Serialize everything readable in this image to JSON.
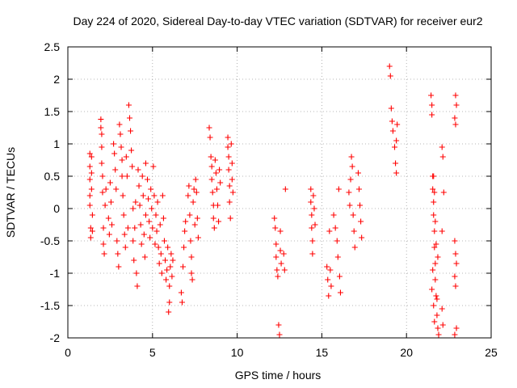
{
  "chart_data": {
    "type": "scatter",
    "title": "Day 224 of 2020, Sidereal Day-to-day VTEC variation (SDTVAR) for receiver eur2",
    "xlabel": "GPS time / hours",
    "ylabel": "SDTVAR / TECUs",
    "xlim": [
      0,
      25
    ],
    "ylim": [
      -2,
      2.5
    ],
    "xticks": [
      0,
      5,
      10,
      15,
      20,
      25
    ],
    "yticks": [
      -2,
      -1.5,
      -1,
      -0.5,
      0,
      0.5,
      1,
      1.5,
      2,
      2.5
    ],
    "xtick_labels": [
      "0",
      "5",
      "10",
      "15",
      "20",
      "25"
    ],
    "ytick_labels": [
      "-2",
      "-1.5",
      "-1",
      "-0.5",
      "0",
      "0.5",
      "1",
      "1.5",
      "2",
      "2.5"
    ],
    "grid": true,
    "marker": "plus",
    "color": "#ff0000",
    "series": [
      {
        "name": "SDTVAR",
        "points": [
          [
            1.3,
            0.85
          ],
          [
            1.3,
            0.65
          ],
          [
            1.3,
            0.45
          ],
          [
            1.3,
            0.2
          ],
          [
            1.3,
            0.05
          ],
          [
            1.35,
            -0.3
          ],
          [
            1.35,
            -0.45
          ],
          [
            1.4,
            0.8
          ],
          [
            1.4,
            0.55
          ],
          [
            1.4,
            0.3
          ],
          [
            1.45,
            -0.1
          ],
          [
            1.45,
            -0.35
          ],
          [
            1.95,
            1.38
          ],
          [
            1.95,
            1.25
          ],
          [
            2.0,
            1.15
          ],
          [
            2.0,
            0.95
          ],
          [
            2.0,
            0.7
          ],
          [
            2.05,
            0.5
          ],
          [
            2.05,
            0.25
          ],
          [
            2.1,
            -0.3
          ],
          [
            2.1,
            -0.55
          ],
          [
            2.15,
            -0.7
          ],
          [
            2.2,
            0.05
          ],
          [
            2.25,
            0.3
          ],
          [
            2.4,
            -0.15
          ],
          [
            2.45,
            -0.4
          ],
          [
            2.5,
            0.4
          ],
          [
            2.55,
            0.1
          ],
          [
            2.6,
            -0.25
          ],
          [
            2.7,
            1.0
          ],
          [
            2.75,
            0.85
          ],
          [
            2.8,
            0.6
          ],
          [
            2.85,
            0.3
          ],
          [
            2.9,
            -0.5
          ],
          [
            2.95,
            -0.7
          ],
          [
            3.0,
            -0.9
          ],
          [
            3.05,
            1.3
          ],
          [
            3.1,
            1.15
          ],
          [
            3.15,
            0.95
          ],
          [
            3.2,
            0.75
          ],
          [
            3.2,
            0.5
          ],
          [
            3.25,
            0.2
          ],
          [
            3.3,
            -0.1
          ],
          [
            3.35,
            -0.4
          ],
          [
            3.4,
            -0.6
          ],
          [
            3.45,
            0.8
          ],
          [
            3.5,
            0.5
          ],
          [
            3.55,
            -0.3
          ],
          [
            3.6,
            1.6
          ],
          [
            3.65,
            1.4
          ],
          [
            3.7,
            1.2
          ],
          [
            3.75,
            0.9
          ],
          [
            3.8,
            0.65
          ],
          [
            3.85,
            0.0
          ],
          [
            3.85,
            -0.5
          ],
          [
            3.9,
            -0.8
          ],
          [
            3.95,
            -0.3
          ],
          [
            4.0,
            0.1
          ],
          [
            4.05,
            -1.0
          ],
          [
            4.1,
            -1.2
          ],
          [
            4.15,
            0.6
          ],
          [
            4.2,
            0.35
          ],
          [
            4.25,
            0.05
          ],
          [
            4.3,
            -0.25
          ],
          [
            4.35,
            -0.55
          ],
          [
            4.4,
            0.5
          ],
          [
            4.45,
            0.2
          ],
          [
            4.5,
            -0.4
          ],
          [
            4.55,
            -0.75
          ],
          [
            4.6,
            0.7
          ],
          [
            4.6,
            -0.1
          ],
          [
            4.7,
            0.45
          ],
          [
            4.75,
            0.15
          ],
          [
            4.8,
            -0.2
          ],
          [
            4.85,
            -0.45
          ],
          [
            4.9,
            0.3
          ],
          [
            4.95,
            0.0
          ],
          [
            5.0,
            -0.3
          ],
          [
            5.05,
            0.65
          ],
          [
            5.1,
            0.2
          ],
          [
            5.15,
            -0.55
          ],
          [
            5.2,
            -0.1
          ],
          [
            5.25,
            -0.35
          ],
          [
            5.3,
            0.1
          ],
          [
            5.35,
            -0.6
          ],
          [
            5.4,
            -0.85
          ],
          [
            5.45,
            -0.25
          ],
          [
            5.5,
            -0.7
          ],
          [
            5.55,
            -1.0
          ],
          [
            5.6,
            0.2
          ],
          [
            5.65,
            -0.15
          ],
          [
            5.7,
            -0.5
          ],
          [
            5.75,
            -0.8
          ],
          [
            5.8,
            -1.1
          ],
          [
            5.85,
            -0.95
          ],
          [
            5.9,
            -0.6
          ],
          [
            5.95,
            -1.6
          ],
          [
            6.0,
            -1.45
          ],
          [
            6.0,
            -1.2
          ],
          [
            6.05,
            -0.9
          ],
          [
            6.1,
            -0.7
          ],
          [
            6.15,
            -1.05
          ],
          [
            6.2,
            -0.8
          ],
          [
            6.7,
            -1.3
          ],
          [
            6.75,
            -1.45
          ],
          [
            6.8,
            -0.9
          ],
          [
            6.85,
            -0.6
          ],
          [
            6.9,
            -0.35
          ],
          [
            6.95,
            -0.2
          ],
          [
            7.1,
            0.2
          ],
          [
            7.15,
            0.35
          ],
          [
            7.2,
            -0.1
          ],
          [
            7.25,
            -0.5
          ],
          [
            7.3,
            -0.75
          ],
          [
            7.3,
            -1.0
          ],
          [
            7.35,
            -1.1
          ],
          [
            7.4,
            0.1
          ],
          [
            7.45,
            0.3
          ],
          [
            7.5,
            -0.25
          ],
          [
            7.55,
            0.45
          ],
          [
            7.6,
            0.25
          ],
          [
            7.65,
            -0.15
          ],
          [
            7.7,
            -0.45
          ],
          [
            8.35,
            1.25
          ],
          [
            8.4,
            1.1
          ],
          [
            8.45,
            0.8
          ],
          [
            8.5,
            0.65
          ],
          [
            8.5,
            0.45
          ],
          [
            8.55,
            0.25
          ],
          [
            8.6,
            0.05
          ],
          [
            8.6,
            -0.15
          ],
          [
            8.65,
            -0.3
          ],
          [
            8.7,
            0.75
          ],
          [
            8.75,
            0.55
          ],
          [
            8.8,
            0.3
          ],
          [
            8.85,
            0.05
          ],
          [
            8.9,
            -0.2
          ],
          [
            8.95,
            0.6
          ],
          [
            9.0,
            0.4
          ],
          [
            9.45,
            1.1
          ],
          [
            9.45,
            0.95
          ],
          [
            9.5,
            0.8
          ],
          [
            9.5,
            0.6
          ],
          [
            9.55,
            0.35
          ],
          [
            9.55,
            0.1
          ],
          [
            9.6,
            -0.15
          ],
          [
            9.65,
            1.0
          ],
          [
            9.7,
            0.7
          ],
          [
            9.7,
            0.45
          ],
          [
            9.75,
            0.25
          ],
          [
            12.2,
            -0.15
          ],
          [
            12.25,
            -0.3
          ],
          [
            12.3,
            -0.55
          ],
          [
            12.3,
            -0.75
          ],
          [
            12.35,
            -0.95
          ],
          [
            12.4,
            -1.05
          ],
          [
            12.45,
            -1.8
          ],
          [
            12.5,
            -1.95
          ],
          [
            12.55,
            -0.35
          ],
          [
            12.55,
            -0.65
          ],
          [
            12.6,
            -0.85
          ],
          [
            12.75,
            -0.7
          ],
          [
            12.8,
            -0.95
          ],
          [
            12.85,
            0.3
          ],
          [
            14.35,
            0.3
          ],
          [
            14.35,
            0.1
          ],
          [
            14.4,
            -0.1
          ],
          [
            14.4,
            -0.3
          ],
          [
            14.45,
            -0.5
          ],
          [
            14.45,
            -0.7
          ],
          [
            14.5,
            0.2
          ],
          [
            14.55,
            0.0
          ],
          [
            14.6,
            -0.25
          ],
          [
            15.3,
            -0.9
          ],
          [
            15.35,
            -1.1
          ],
          [
            15.4,
            -1.35
          ],
          [
            15.45,
            -0.35
          ],
          [
            15.5,
            -0.95
          ],
          [
            15.55,
            -1.2
          ],
          [
            15.7,
            -0.1
          ],
          [
            15.8,
            -0.3
          ],
          [
            15.9,
            -0.5
          ],
          [
            15.95,
            -0.75
          ],
          [
            16.0,
            0.3
          ],
          [
            16.05,
            -1.05
          ],
          [
            16.1,
            -1.3
          ],
          [
            16.6,
            0.25
          ],
          [
            16.65,
            0.05
          ],
          [
            16.7,
            0.45
          ],
          [
            16.75,
            0.8
          ],
          [
            16.8,
            0.65
          ],
          [
            16.85,
            -0.1
          ],
          [
            16.9,
            -0.35
          ],
          [
            16.95,
            -0.6
          ],
          [
            17.15,
            0.55
          ],
          [
            17.2,
            0.3
          ],
          [
            17.25,
            0.05
          ],
          [
            17.3,
            -0.2
          ],
          [
            17.35,
            -0.45
          ],
          [
            19.0,
            2.2
          ],
          [
            19.05,
            2.05
          ],
          [
            19.1,
            1.55
          ],
          [
            19.15,
            1.35
          ],
          [
            19.2,
            1.2
          ],
          [
            19.3,
            0.95
          ],
          [
            19.35,
            0.7
          ],
          [
            19.4,
            0.55
          ],
          [
            19.4,
            1.05
          ],
          [
            19.45,
            1.3
          ],
          [
            21.45,
            1.75
          ],
          [
            21.5,
            1.6
          ],
          [
            21.5,
            1.45
          ],
          [
            21.55,
            0.5
          ],
          [
            21.55,
            0.3
          ],
          [
            21.6,
            0.1
          ],
          [
            21.6,
            -0.1
          ],
          [
            21.65,
            -0.35
          ],
          [
            21.65,
            -0.6
          ],
          [
            21.7,
            -0.85
          ],
          [
            21.7,
            -1.1
          ],
          [
            21.75,
            -1.35
          ],
          [
            21.8,
            -1.65
          ],
          [
            21.85,
            -1.85
          ],
          [
            21.9,
            -1.95
          ],
          [
            21.6,
            0.5
          ],
          [
            21.65,
            0.25
          ],
          [
            21.7,
            -0.2
          ],
          [
            21.6,
            -1.5
          ],
          [
            21.65,
            -1.75
          ],
          [
            21.75,
            -0.55
          ],
          [
            21.5,
            -1.25
          ],
          [
            21.55,
            -0.95
          ],
          [
            21.8,
            -1.4
          ],
          [
            21.85,
            -0.75
          ],
          [
            22.1,
            0.95
          ],
          [
            22.15,
            0.8
          ],
          [
            22.2,
            0.25
          ],
          [
            22.1,
            -0.35
          ],
          [
            22.15,
            -1.8
          ],
          [
            22.1,
            -1.55
          ],
          [
            22.9,
            1.75
          ],
          [
            22.95,
            1.6
          ],
          [
            22.85,
            1.4
          ],
          [
            22.9,
            1.3
          ],
          [
            22.85,
            -0.5
          ],
          [
            22.9,
            -0.7
          ],
          [
            22.95,
            -0.85
          ],
          [
            22.85,
            -1.05
          ],
          [
            22.9,
            -1.2
          ],
          [
            22.95,
            -1.85
          ],
          [
            22.85,
            -1.95
          ]
        ]
      }
    ]
  }
}
